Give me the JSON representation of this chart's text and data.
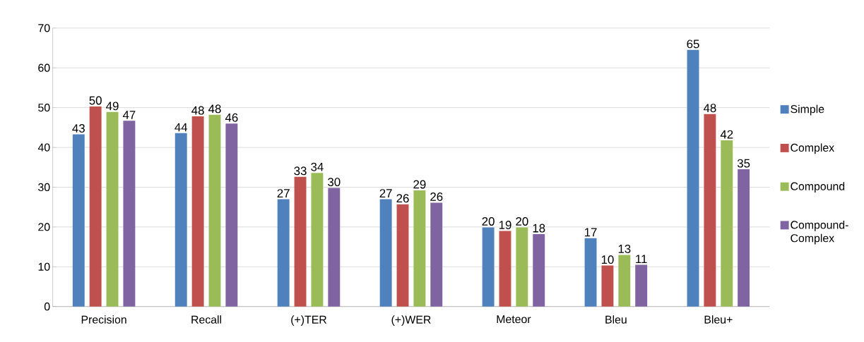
{
  "chart_data": {
    "type": "bar",
    "categories": [
      "Precision",
      "Recall",
      "(+)TER",
      "(+)WER",
      "Meteor",
      "Bleu",
      "Bleu+"
    ],
    "series": [
      {
        "name": "Simple",
        "color": "#4f81bd",
        "values": [
          43.3,
          43.6,
          27.0,
          27.0,
          19.9,
          17.2,
          64.5
        ],
        "value_labels": [
          "43",
          "44",
          "27",
          "27",
          "20",
          "17",
          "65"
        ]
      },
      {
        "name": "Complex",
        "color": "#c0504d",
        "values": [
          50.3,
          47.8,
          32.6,
          25.7,
          19.0,
          10.3,
          48.4
        ],
        "value_labels": [
          "50",
          "48",
          "33",
          "26",
          "19",
          "10",
          "48"
        ]
      },
      {
        "name": "Compound",
        "color": "#9bbb59",
        "values": [
          48.9,
          48.2,
          33.6,
          29.2,
          19.9,
          13.0,
          41.8
        ],
        "value_labels": [
          "49",
          "48",
          "34",
          "29",
          "20",
          "13",
          "42"
        ]
      },
      {
        "name": "Compound-Complex",
        "color": "#8064a2",
        "values": [
          46.7,
          46.0,
          29.8,
          26.1,
          18.2,
          10.5,
          34.5
        ],
        "value_labels": [
          "47",
          "46",
          "30",
          "26",
          "18",
          "11",
          "35"
        ]
      }
    ],
    "ylim": [
      0,
      70
    ],
    "yticks": [
      0,
      10,
      20,
      30,
      40,
      50,
      60,
      70
    ],
    "grid": "y",
    "legend": "right"
  }
}
